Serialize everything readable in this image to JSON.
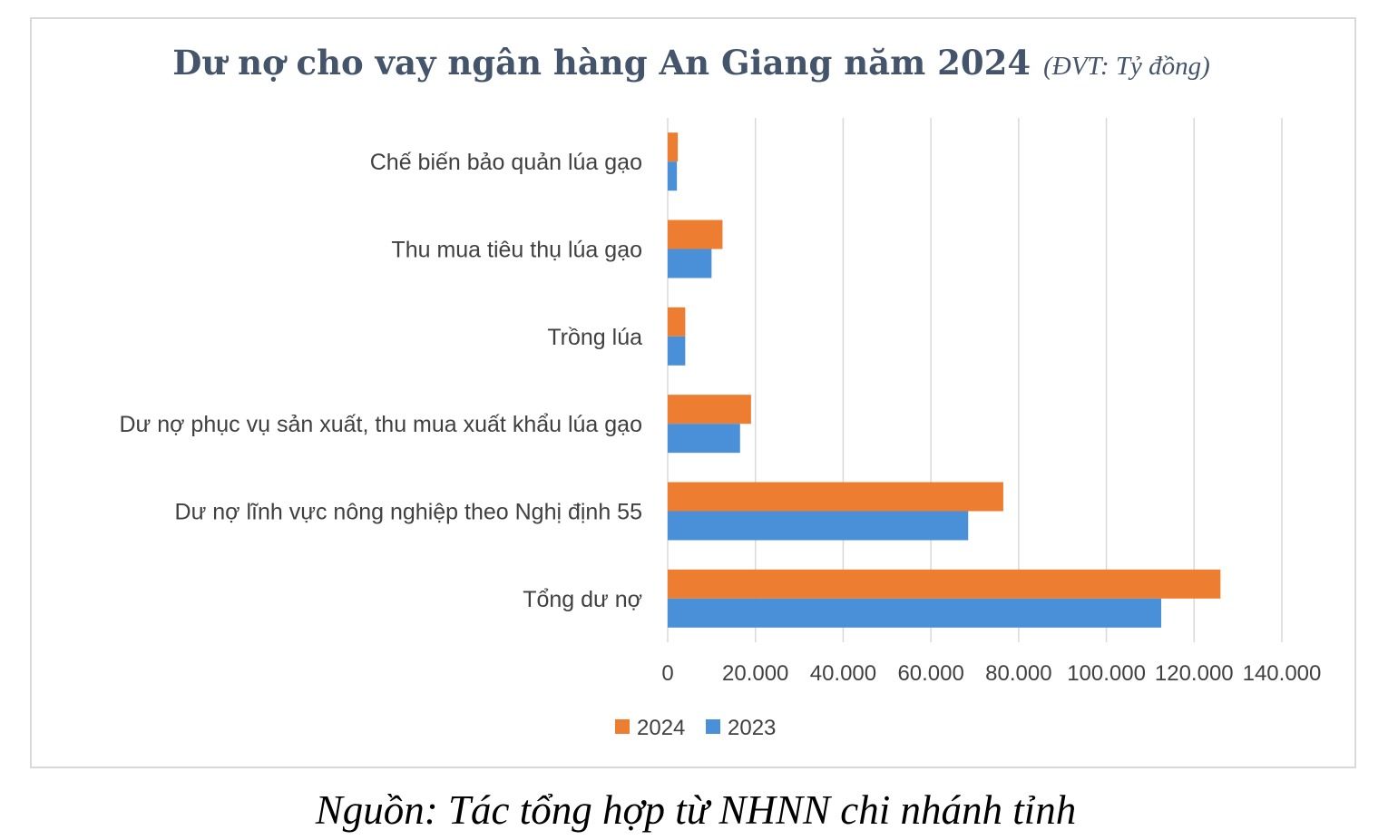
{
  "colors": {
    "series_2024": "#ed7d31",
    "series_2023": "#4a90d9",
    "title": "#44546a",
    "gridline": "#d9d9d9"
  },
  "source_note": "Nguồn: Tác tổng hợp từ NHNN chi nhánh tỉnh",
  "chart_data": {
    "type": "bar",
    "orientation": "horizontal",
    "title": "Dư nợ cho vay ngân hàng An Giang năm 2024",
    "title_unit": "(ĐVT: Tỷ đồng)",
    "xlabel": "",
    "ylabel": "",
    "xlim": [
      0,
      140000
    ],
    "ticks": [
      {
        "value": 0,
        "label": "0"
      },
      {
        "value": 20000,
        "label": "20.000"
      },
      {
        "value": 40000,
        "label": "40.000"
      },
      {
        "value": 60000,
        "label": "60.000"
      },
      {
        "value": 80000,
        "label": "80.000"
      },
      {
        "value": 100000,
        "label": "100.000"
      },
      {
        "value": 120000,
        "label": "120.000"
      },
      {
        "value": 140000,
        "label": "140.000"
      }
    ],
    "grid": true,
    "legend_position": "bottom",
    "categories": [
      "Chế biến bảo quản lúa gạo",
      "Thu mua tiêu thụ lúa gạo",
      "Trồng lúa",
      "Dư nợ phục vụ sản xuất, thu mua xuất khẩu lúa gạo",
      "Dư nợ lĩnh vực nông nghiệp theo Nghị định 55",
      "Tổng dư nợ"
    ],
    "series": [
      {
        "name": "2024",
        "values": [
          2300,
          12500,
          4000,
          19000,
          76500,
          126000
        ]
      },
      {
        "name": "2023",
        "values": [
          2100,
          10000,
          4000,
          16500,
          68500,
          112500
        ]
      }
    ]
  }
}
